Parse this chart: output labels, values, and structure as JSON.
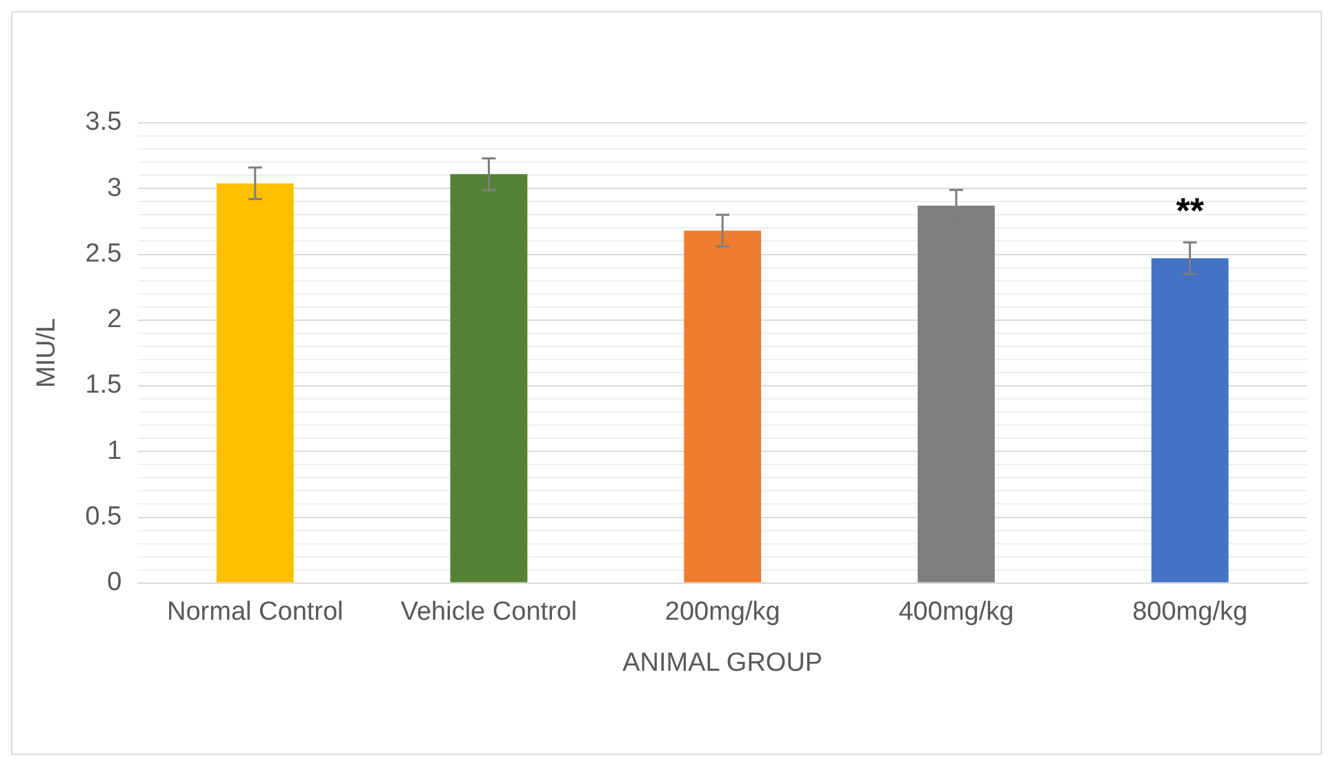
{
  "chart_data": {
    "type": "bar",
    "xlabel": "ANIMAL GROUP",
    "ylabel": "MIU/L",
    "categories": [
      "Normal Control",
      "Vehicle Control",
      "200mg/kg",
      "400mg/kg",
      "800mg/kg"
    ],
    "values": [
      3.04,
      3.11,
      2.68,
      2.87,
      2.47
    ],
    "colors": [
      "#ffc000",
      "#548235",
      "#ed7d31",
      "#7f7f7f",
      "#4472c4"
    ],
    "errors": [
      0.12,
      0.12,
      0.12,
      0.12,
      0.12
    ],
    "ylim": [
      0,
      3.5
    ],
    "yticks": [
      0,
      {
        "value": 0.1,
        "label": null
      },
      {
        "value": 0.2,
        "label": null
      },
      {
        "value": 0.3,
        "label": null
      },
      {
        "value": 0.4,
        "label": null
      },
      0.5,
      {
        "value": 0.6,
        "label": null
      },
      {
        "value": 0.7,
        "label": null
      },
      {
        "value": 0.8,
        "label": null
      },
      {
        "value": 0.9,
        "label": null
      },
      1,
      {
        "value": 1.1,
        "label": null
      },
      {
        "value": 1.2,
        "label": null
      },
      {
        "value": 1.3,
        "label": null
      },
      {
        "value": 1.4,
        "label": null
      },
      1.5,
      {
        "value": 1.6,
        "label": null
      },
      {
        "value": 1.7,
        "label": null
      },
      {
        "value": 1.8,
        "label": null
      },
      {
        "value": 1.9,
        "label": null
      },
      2,
      {
        "value": 2.1,
        "label": null
      },
      {
        "value": 2.2,
        "label": null
      },
      {
        "value": 2.3,
        "label": null
      },
      {
        "value": 2.4,
        "label": null
      },
      2.5,
      {
        "value": 2.6,
        "label": null
      },
      {
        "value": 2.7,
        "label": null
      },
      {
        "value": 2.8,
        "label": null
      },
      {
        "value": 2.9,
        "label": null
      },
      3,
      {
        "value": 3.1,
        "label": null
      },
      {
        "value": 3.2,
        "label": null
      },
      {
        "value": 3.3,
        "label": null
      },
      {
        "value": 3.4,
        "label": null
      },
      3.5
    ],
    "grid": "y",
    "legend": false,
    "annotations": [
      "**"
    ]
  }
}
